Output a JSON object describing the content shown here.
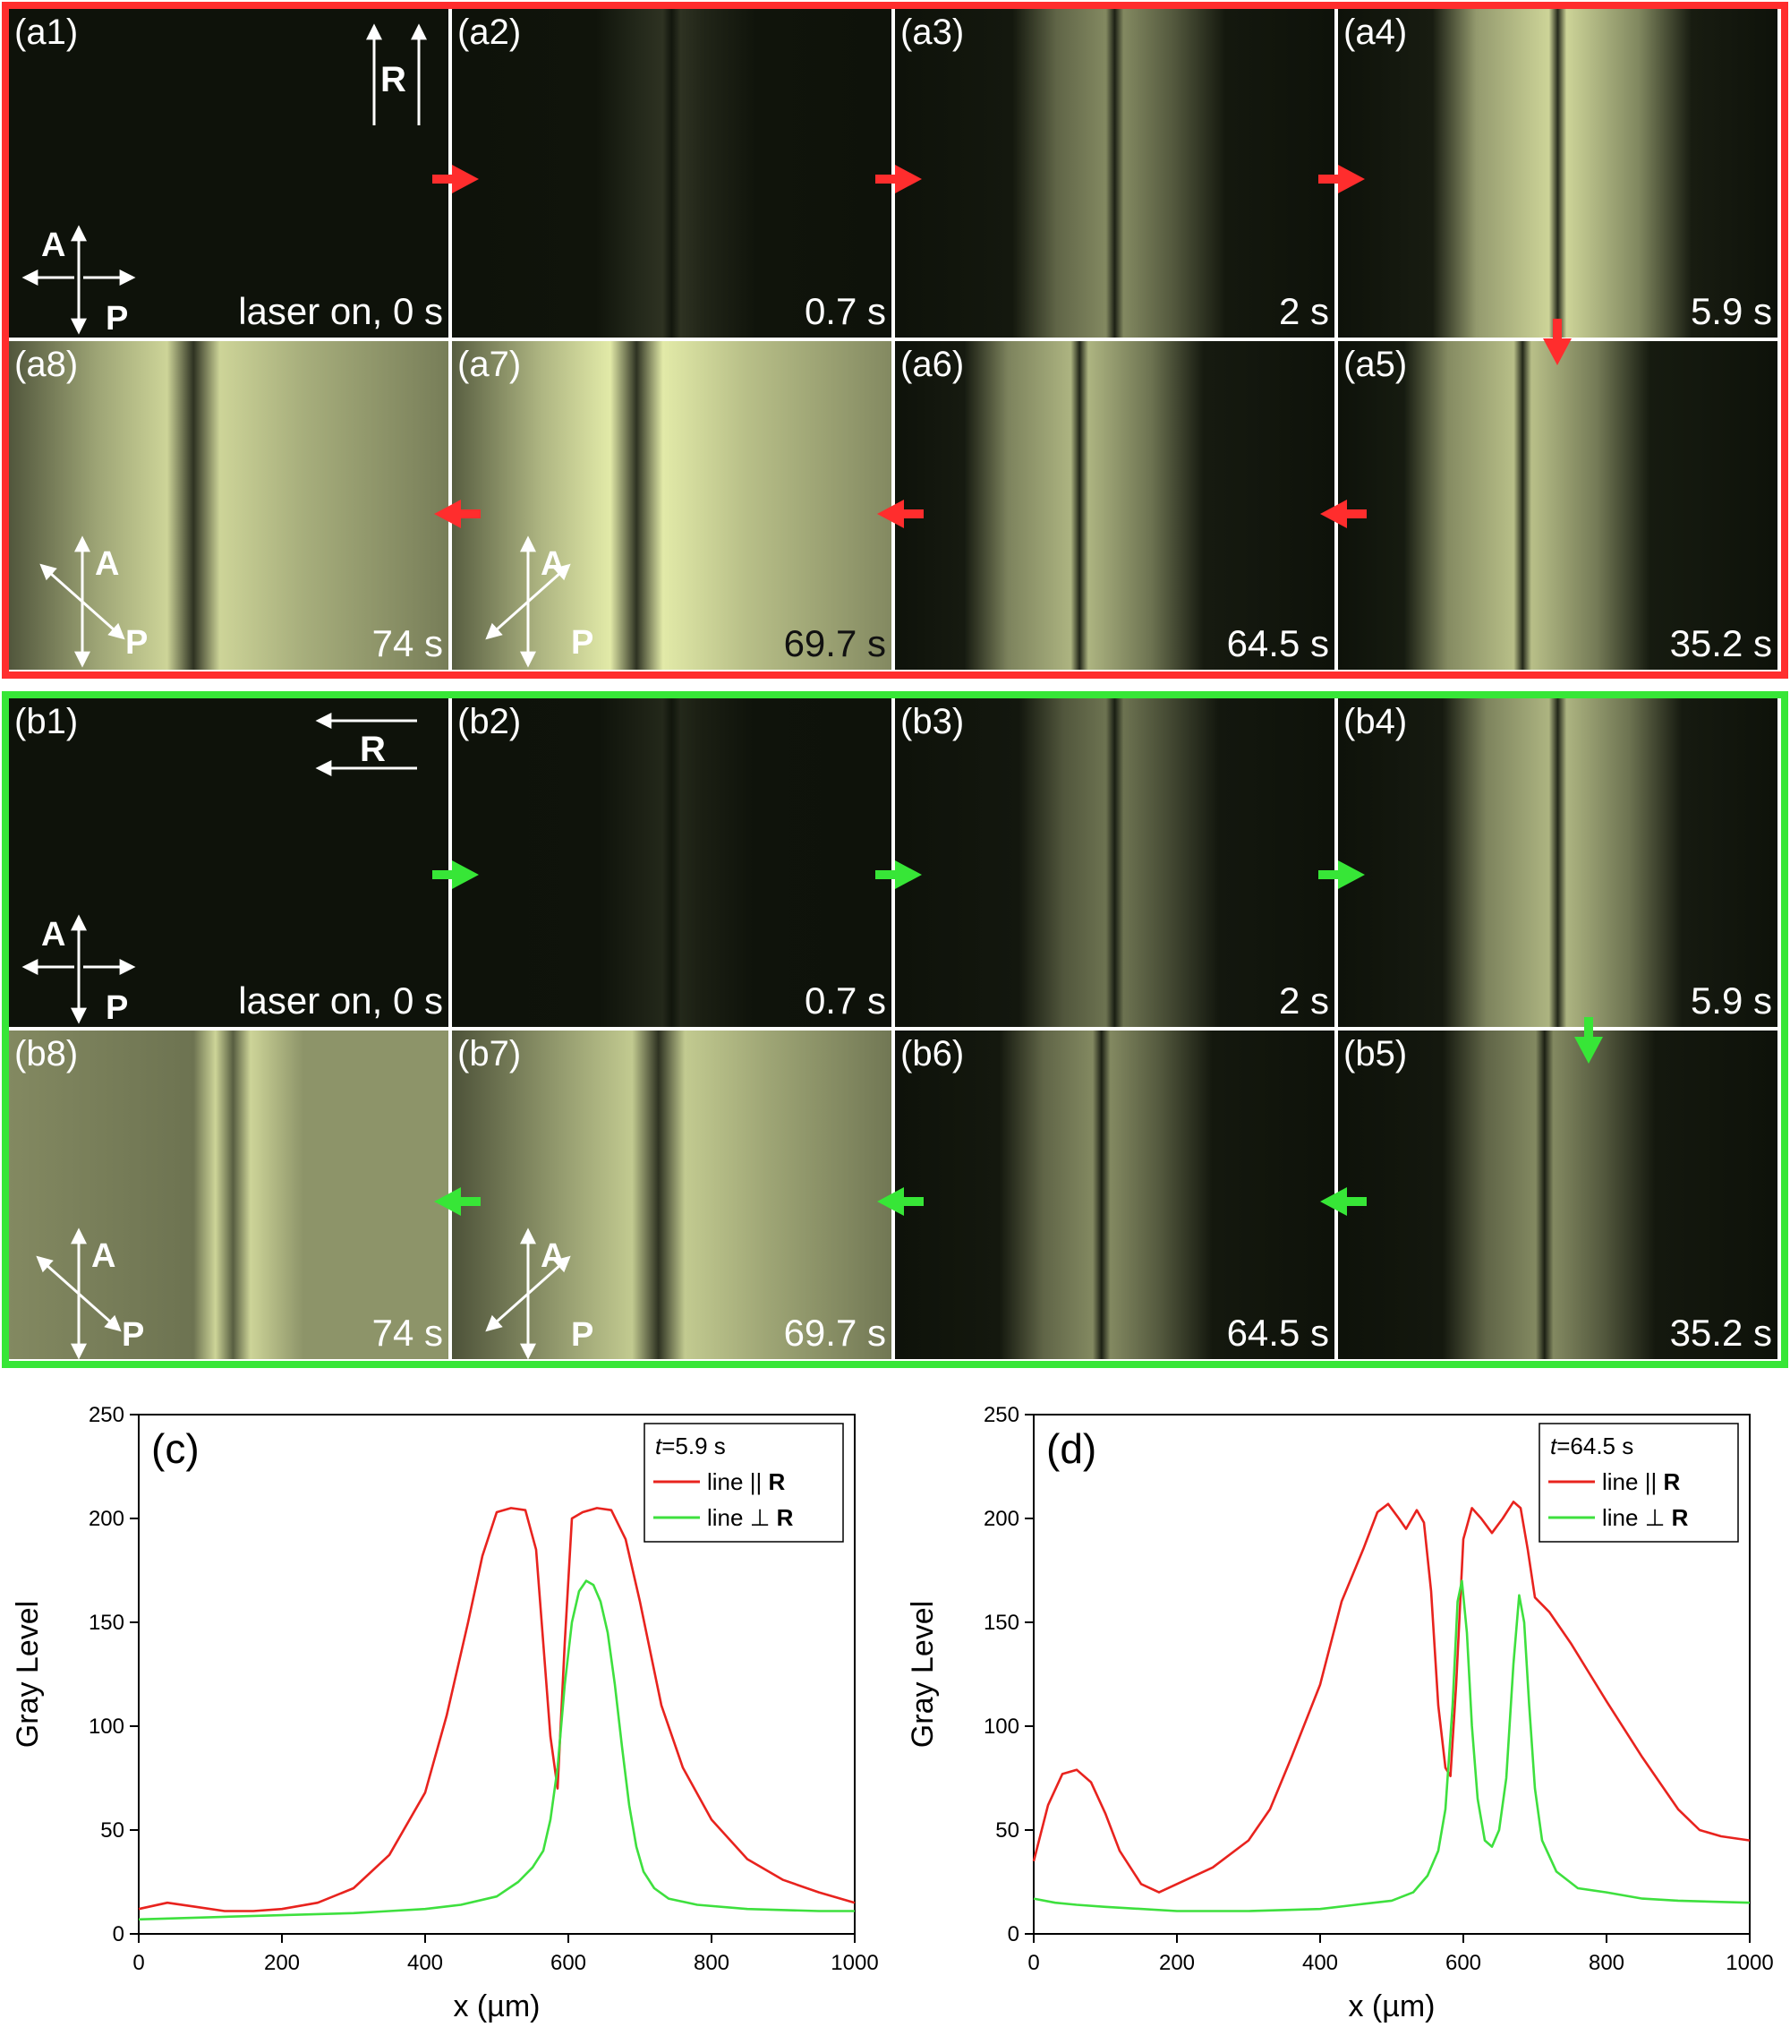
{
  "colors": {
    "red": "#ff2d2d",
    "green": "#37e637",
    "panel_bg": "#0e120a",
    "bright": "#e6ecae"
  },
  "group_a": {
    "R_label": "R",
    "A_label": "A",
    "P_label": "P",
    "panels": [
      {
        "id": "a1",
        "label": "(a1)",
        "time": "laser on, 0 s",
        "level": 0.0
      },
      {
        "id": "a2",
        "label": "(a2)",
        "time": "0.7 s",
        "level": 0.15
      },
      {
        "id": "a3",
        "label": "(a3)",
        "time": "2 s",
        "level": 0.55
      },
      {
        "id": "a4",
        "label": "(a4)",
        "time": "5.9 s",
        "level": 0.9
      },
      {
        "id": "a8",
        "label": "(a8)",
        "time": "74 s",
        "level": 0.9
      },
      {
        "id": "a7",
        "label": "(a7)",
        "time": "69.7 s",
        "level": 1.0
      },
      {
        "id": "a6",
        "label": "(a6)",
        "time": "64.5 s",
        "level": 0.75
      },
      {
        "id": "a5",
        "label": "(a5)",
        "time": "35.2 s",
        "level": 0.8
      }
    ]
  },
  "group_b": {
    "R_label": "R",
    "A_label": "A",
    "P_label": "P",
    "panels": [
      {
        "id": "b1",
        "label": "(b1)",
        "time": "laser on, 0 s",
        "level": 0.0
      },
      {
        "id": "b2",
        "label": "(b2)",
        "time": "0.7 s",
        "level": 0.1
      },
      {
        "id": "b3",
        "label": "(b3)",
        "time": "2 s",
        "level": 0.45
      },
      {
        "id": "b4",
        "label": "(b4)",
        "time": "5.9 s",
        "level": 0.75
      },
      {
        "id": "b8",
        "label": "(b8)",
        "time": "74 s",
        "level": 0.85
      },
      {
        "id": "b7",
        "label": "(b7)",
        "time": "69.7 s",
        "level": 0.85
      },
      {
        "id": "b6",
        "label": "(b6)",
        "time": "64.5 s",
        "level": 0.55
      },
      {
        "id": "b5",
        "label": "(b5)",
        "time": "35.2 s",
        "level": 0.55
      }
    ]
  },
  "chart_data": [
    {
      "type": "line",
      "panel_label": "(c)",
      "legend_title_italic": "t",
      "legend_title_rest": "=5.9 s",
      "xlabel": "x (µm)",
      "ylabel": "Gray Level",
      "xlim": [
        0,
        1000
      ],
      "ylim": [
        0,
        250
      ],
      "xticks": [
        0,
        200,
        400,
        600,
        800,
        1000
      ],
      "yticks": [
        0,
        50,
        100,
        150,
        200,
        250
      ],
      "legend_position": "top-right",
      "series": [
        {
          "name": "line || R",
          "name_text": "line || ",
          "name_bold": "R",
          "color": "#e8231e",
          "x": [
            0,
            40,
            80,
            120,
            160,
            200,
            250,
            300,
            350,
            400,
            430,
            460,
            480,
            500,
            520,
            540,
            555,
            565,
            575,
            585,
            595,
            605,
            620,
            640,
            660,
            680,
            700,
            730,
            760,
            800,
            850,
            900,
            950,
            1000
          ],
          "y": [
            12,
            15,
            13,
            11,
            11,
            12,
            15,
            22,
            38,
            68,
            105,
            150,
            182,
            203,
            205,
            204,
            185,
            140,
            95,
            70,
            140,
            200,
            203,
            205,
            204,
            190,
            160,
            110,
            80,
            55,
            36,
            26,
            20,
            15
          ]
        },
        {
          "name": "line ⊥ R",
          "name_text": "line ⊥ ",
          "name_bold": "R",
          "color": "#3ee03e",
          "x": [
            0,
            100,
            200,
            300,
            350,
            400,
            450,
            500,
            530,
            550,
            565,
            575,
            585,
            595,
            605,
            615,
            625,
            635,
            645,
            655,
            665,
            675,
            685,
            695,
            705,
            720,
            740,
            780,
            850,
            950,
            1000
          ],
          "y": [
            7,
            8,
            9,
            10,
            11,
            12,
            14,
            18,
            25,
            32,
            40,
            55,
            80,
            120,
            150,
            165,
            170,
            168,
            160,
            145,
            120,
            90,
            62,
            42,
            30,
            22,
            17,
            14,
            12,
            11,
            11
          ]
        }
      ]
    },
    {
      "type": "line",
      "panel_label": "(d)",
      "legend_title_italic": "t",
      "legend_title_rest": "=64.5 s",
      "xlabel": "x (µm)",
      "ylabel": "Gray Level",
      "xlim": [
        0,
        1000
      ],
      "ylim": [
        0,
        250
      ],
      "xticks": [
        0,
        200,
        400,
        600,
        800,
        1000
      ],
      "yticks": [
        0,
        50,
        100,
        150,
        200,
        250
      ],
      "legend_position": "top-right",
      "series": [
        {
          "name": "line || R",
          "name_text": "line || ",
          "name_bold": "R",
          "color": "#e8231e",
          "x": [
            0,
            20,
            40,
            60,
            80,
            100,
            120,
            150,
            175,
            200,
            250,
            300,
            330,
            360,
            400,
            430,
            460,
            480,
            495,
            510,
            520,
            535,
            545,
            555,
            565,
            575,
            582,
            590,
            600,
            612,
            625,
            640,
            655,
            670,
            680,
            690,
            700,
            720,
            750,
            800,
            850,
            900,
            930,
            960,
            1000
          ],
          "y": [
            35,
            62,
            77,
            79,
            73,
            58,
            40,
            24,
            20,
            24,
            32,
            45,
            60,
            85,
            120,
            160,
            185,
            203,
            207,
            200,
            195,
            204,
            198,
            165,
            110,
            80,
            76,
            120,
            190,
            205,
            200,
            193,
            200,
            208,
            205,
            185,
            162,
            155,
            140,
            112,
            85,
            60,
            50,
            47,
            45
          ]
        },
        {
          "name": "line ⊥ R",
          "name_text": "line ⊥ ",
          "name_bold": "R",
          "color": "#3ee03e",
          "x": [
            0,
            30,
            60,
            100,
            200,
            300,
            400,
            450,
            500,
            530,
            550,
            565,
            575,
            585,
            592,
            598,
            605,
            612,
            620,
            630,
            640,
            650,
            660,
            670,
            678,
            685,
            692,
            700,
            710,
            730,
            760,
            800,
            850,
            900,
            1000
          ],
          "y": [
            17,
            15,
            14,
            13,
            11,
            11,
            12,
            14,
            16,
            20,
            28,
            40,
            60,
            110,
            160,
            170,
            145,
            100,
            65,
            45,
            42,
            50,
            75,
            130,
            163,
            150,
            110,
            70,
            45,
            30,
            22,
            20,
            17,
            16,
            15
          ]
        }
      ]
    }
  ]
}
